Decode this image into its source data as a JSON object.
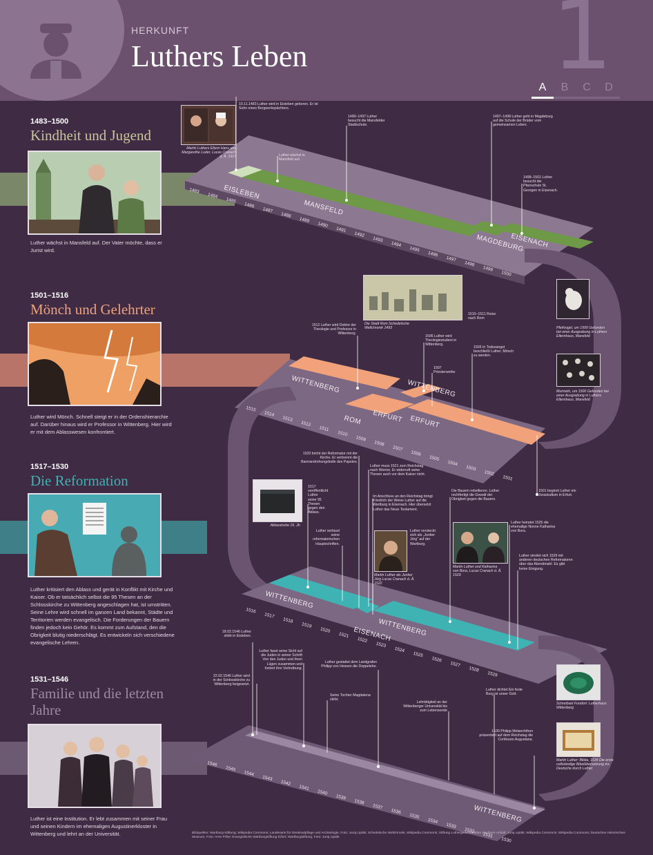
{
  "header": {
    "kicker": "HERKUNFT",
    "title": "Luthers Leben",
    "chapter_number": "1",
    "tabs": [
      "A",
      "B",
      "C",
      "D"
    ]
  },
  "sections": [
    {
      "years": "1483–1500",
      "title": "Kindheit und Jugend",
      "color": "#c8c69a",
      "text": "Luther wächst in Mansfeld auf. Der Vater möchte, dass er Jurist wird."
    },
    {
      "years": "1501–1516",
      "title": "Mönch und Gelehrter",
      "color": "#f0a27c",
      "text": "Luther wird Mönch. Schnell steigt er in der Ordenshierarchie auf. Darüber hinaus wird er Professor in Wittenberg. Hier wird er mit dem Ablasswesen konfrontiert."
    },
    {
      "years": "1517–1530",
      "title": "Die Reformation",
      "color": "#3fb3b4",
      "text": "Luther kritisiert den Ablass und gerät in Konflikt mit Kirche und Kaiser. Ob er tatsächlich selbst die 95 Thesen an der Schlosskirche zu Wittenberg angeschlagen hat, ist umstritten. Seine Lehre wird schnell im ganzen Land bekannt, Städte und Territorien werden evangelisch. Die Forderungen der Bauern finden jedoch kein Gehör. Es kommt zum Aufstand, den die Obrigkeit blutig niederschlägt. Es entwickeln sich verschiedene evangelische Lehren."
    },
    {
      "years": "1531–1546",
      "title": "Familie und die letzten Jahre",
      "color": "#9d8aa3",
      "text": "Luther ist eine Institution. Er lebt zusammen mit seiner Frau und seinen Kindern im ehemaligen Augustinerkloster in Wittenberg und lehrt an der Universität."
    }
  ],
  "timeline": {
    "row1": {
      "years": [
        "1483",
        "1484",
        "1485",
        "1486",
        "1487",
        "1488",
        "1489",
        "1490",
        "1491",
        "1492",
        "1493",
        "1494",
        "1495",
        "1496",
        "1497",
        "1498",
        "1499",
        "1500"
      ],
      "places": [
        "EISLEBEN",
        "MANSFELD",
        "MAGDEBURG",
        "EISENACH"
      ]
    },
    "row2": {
      "years": [
        "1515",
        "1514",
        "1513",
        "1512",
        "1511",
        "1510",
        "1509",
        "1508",
        "1507",
        "1506",
        "1505",
        "1504",
        "1503",
        "1502",
        "1501"
      ],
      "places": [
        "WITTENBERG",
        "WITTENBERG",
        "ROM",
        "ERFURT",
        "ERFURT"
      ]
    },
    "row3": {
      "years": [
        "1516",
        "1517",
        "1518",
        "1519",
        "1520",
        "1521",
        "1522",
        "1523",
        "1524",
        "1525",
        "1526",
        "1527",
        "1528",
        "1529"
      ],
      "places": [
        "WITTENBERG",
        "EISENACH",
        "WITTENBERG"
      ]
    },
    "row4": {
      "years": [
        "1546",
        "1545",
        "1544",
        "1543",
        "1542",
        "1541",
        "1540",
        "1539",
        "1538",
        "1537",
        "1536",
        "1535",
        "1534",
        "1533",
        "1532",
        "1531",
        "1530"
      ],
      "places": [
        "WITTENBERG"
      ]
    }
  },
  "events": {
    "e1": "10.11.1483 Luther wird in Eisleben geboren. Er ist Sohn eines Bergwerkspächters.",
    "e1_caption": "Martin Luthers Eltern Hans und Margarethe Luder, Lucas Cranach d. Ä. 1527",
    "e2": "Luther wächst in Mansfeld auf.",
    "e3": "1490–1497 Luther besucht die Mansfelder Stadtschule.",
    "e4": "1497–1498 Luther geht in Magdeburg auf die Schule der Brüder vom gemeinsamen Leben.",
    "e5": "1498–1501 Luther besucht die Pfarrschule St. Georgen in Eisenach.",
    "e6": "1510–1511 Reise nach Rom",
    "e6_caption": "Die Stadt Rom Schedelsche Weltchronik 1493",
    "e7": "1512 Luther wird Doktor der Theologie und Professor in Wittenberg.",
    "e8": "1506 Luther wird Theologiestudent in Wittenberg.",
    "e9": "1505 In Todesangst beschließt Luther, Mönch zu werden.",
    "e10": "1507 Priesterweihe",
    "e11": "1501 beginnt Luther ein Jurastudium in Erfurt.",
    "e12_caption": "Pfeifvogel, um 1500 Gefunden bei einer Ausgrabung in Luthers Elternhaus, Mansfeld",
    "e13_caption": "Murmeln, um 1500 Gefunden bei einer Ausgrabung in Luthers Elternhaus, Mansfeld",
    "e14": "1520 bricht der Reformator mit der Kirche. Er verbrennt die Bannandrohungsbulle des Papstes.",
    "e15": "Luther muss 1521 zum Reichstag nach Worms. Er widerruft seine Thesen auch vor dem Kaiser nicht.",
    "e16": "1517 veröffentlicht Luther seine 95 Thesen gegen den Ablass.",
    "e16_caption": "Ablasstruhe 16. Jh.",
    "e17": "Im Anschluss an den Reichstag bringt Friedrich der Weise Luther auf die Wartburg in Eisenach. Hier übersetzt Luther das Neue Testament.",
    "e18": "Die Bauern rebellieren. Luther rechtfertigt die Gewalt der Obrigkeit gegen die Bauern.",
    "e19": "Luther verfasst seine reformatorischen Hauptschriften.",
    "e20": "Luther versteckt sich als „Junker Jörg“ auf der Wartburg.",
    "e20_caption": "Martin Luther als Junker Jörg Lucas Cranach d. Ä. 1522",
    "e21": "Luther heiratet 1525 die ehemalige Nonne Katharina von Bora.",
    "e21_caption": "Martin Luther und Katharina von Bora, Lucas Cranach d. Ä. 1529",
    "e22": "Luther streitet sich 1529 mit anderen deutschen Reformatoren über das Abendmahl. Es gibt keine Einigung.",
    "e23": "18.02.1546 Luther stirbt in Eisleben.",
    "e24": "Luther fasst seine Sicht auf die Juden in seiner Schrift Von den Juden und ihren Lügen zusammen und fordert ihre Vertreibung.",
    "e25": "Luther gestattet dem Landgrafen Philipp von Hessen die Doppelehe.",
    "e26": "22.02.1546 Luther wird in der Schlosskirche zu Wittenberg beigesetzt.",
    "e27": "Seine Tochter Magdalena stirbt.",
    "e28": "Lehrtätigkeit an der Wittenberger Universität bis zum Lebensende",
    "e29": "Luther dichtet Ein feste Burg ist unser Gott.",
    "e30": "1530 Philipp Melanchthon präsentiert auf dem Reichstag die Confessio Augustana.",
    "e31_caption": "Schreibset Fundort: Lutherhaus Wittenberg",
    "e32_caption": "Martin Luther: Biblia, 1534 Die erste vollständige Bibelübersetzung ins Deutsche durch Luther"
  },
  "sources": "Bildquellen: Wartburg-Stiftung; Wikipedia Commons; Landesamt für Denkmalpflege und Archäologie, Foto: Juraj Lipták; Schedelsche Weltchronik, Wikipedia Commons; Stiftung Luthergedenkstätten Sachsen-Anhalt; Juraj Lipták; Wikipedia Commons; Wikipedia Commons; Deutsches Historisches Museum, Foto: Arne Pribe; Evangelische Wartburgstiftung Erfurt; Wartburgstiftung, Foto: Juraj Lipták"
}
